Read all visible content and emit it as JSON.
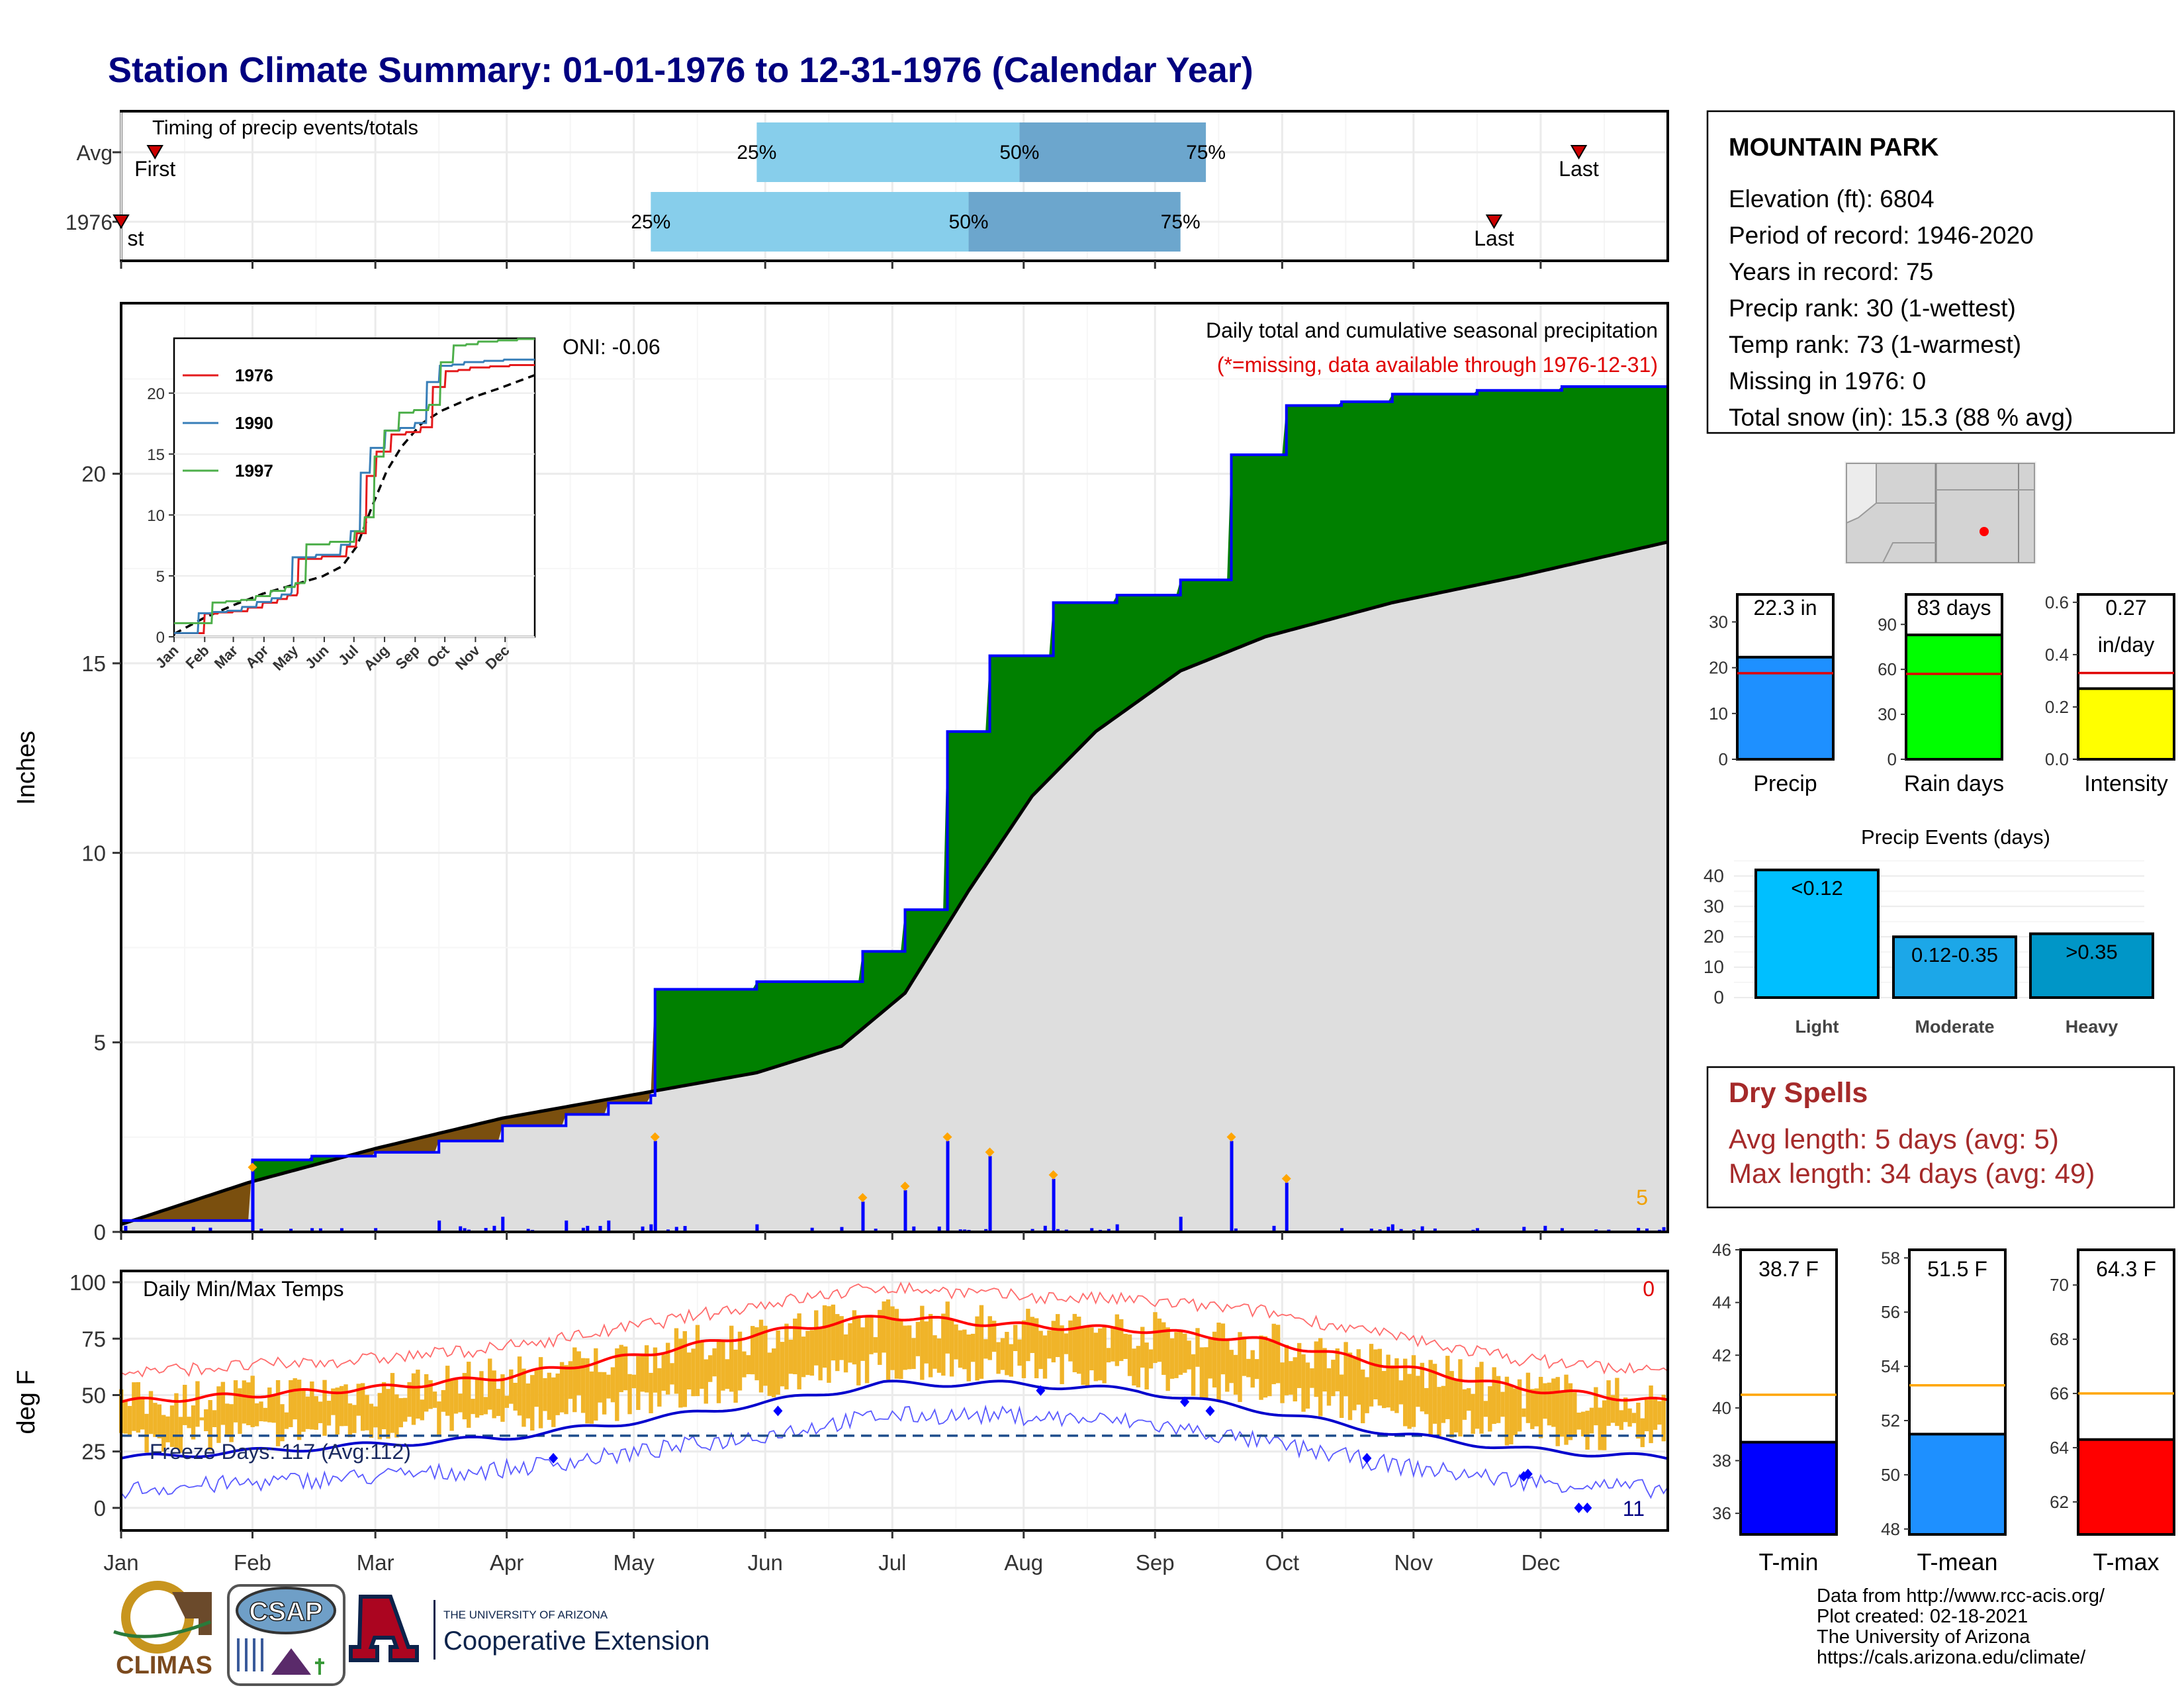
{
  "title": "Station Climate Summary: 01-01-1976 to 12-31-1976 (Calendar Year)",
  "months": [
    "Jan",
    "Feb",
    "Mar",
    "Apr",
    "May",
    "Jun",
    "Jul",
    "Aug",
    "Sep",
    "Oct",
    "Nov",
    "Dec"
  ],
  "timing": {
    "title": "Timing of precip events/totals",
    "rows": [
      {
        "label": "Avg",
        "first_label": "First",
        "last_label": "Last",
        "first_doy": 8,
        "q25_doy": 150,
        "q50_doy": 212,
        "q75_doy": 256,
        "last_doy": 344
      },
      {
        "label": "1976",
        "first_label": "First",
        "last_label": "Last",
        "first_doy": 0,
        "q25_doy": 125,
        "q50_doy": 200,
        "q75_doy": 250,
        "last_doy": 324
      }
    ],
    "q_labels": [
      "25%",
      "50%",
      "75%"
    ]
  },
  "precip_panel": {
    "ylabel": "Inches",
    "oni_label": "ONI: -0.06",
    "legend_title": "Daily total and cumulative seasonal precipitation",
    "legend_note": "(*=missing, data available through 1976-12-31)",
    "count_label": "5",
    "yticks": [
      "0",
      "5",
      "10",
      "15",
      "20"
    ],
    "inset_legend": [
      "1976",
      "1990",
      "1997"
    ],
    "inset_months": [
      "Jan",
      "Feb",
      "Mar",
      "Apr",
      "May",
      "Jun",
      "Jul",
      "Aug",
      "Sep",
      "Oct",
      "Nov",
      "Dec"
    ],
    "inset_yticks": [
      "0",
      "5",
      "10",
      "15",
      "20"
    ]
  },
  "temp_panel": {
    "ylabel": "deg F",
    "title": "Daily Min/Max Temps",
    "freeze_label": "Freeze Days: 117 (Avg:112)",
    "count_top": "0",
    "count_bottom": "11",
    "yticks": [
      "0",
      "25",
      "50",
      "75",
      "100"
    ]
  },
  "station": {
    "name": "MOUNTAIN PARK",
    "lines": [
      "Elevation (ft): 6804",
      "Period of record: 1946-2020",
      "Years in record: 75",
      "Precip rank: 30 (1-wettest)",
      "Temp rank: 73 (1-warmest)",
      "Missing in 1976: 0",
      "Total snow (in): 15.3 (88 % avg)"
    ]
  },
  "mini_bars": [
    {
      "label": "Precip",
      "value_label": "22.3 in",
      "value": 22.3,
      "avg": 18.8,
      "ymax": 36,
      "ticks": [
        "0",
        "10",
        "20",
        "30"
      ],
      "color": "#1e90ff"
    },
    {
      "label": "Rain days",
      "value_label": "83 days",
      "value": 83,
      "avg": 57,
      "ymax": 110,
      "ticks": [
        "0",
        "30",
        "60",
        "90"
      ],
      "color": "#00ff00"
    },
    {
      "label": "Intensity",
      "value_label": "0.27",
      "value_label2": "in/day",
      "value": 0.27,
      "avg": 0.33,
      "ymax": 0.63,
      "ticks": [
        "0.0",
        "0.2",
        "0.4",
        "0.6"
      ],
      "color": "#ffff00"
    }
  ],
  "events": {
    "title": "Precip Events (days)",
    "categories": [
      "Light",
      "Moderate",
      "Heavy"
    ],
    "bar_labels": [
      "<0.12",
      "0.12-0.35",
      ">0.35"
    ],
    "values": [
      42,
      20,
      21
    ],
    "colors": [
      "#00bfff",
      "#1ca7e8",
      "#0096c7"
    ],
    "yticks": [
      "0",
      "10",
      "20",
      "30",
      "40"
    ]
  },
  "dry_spells": {
    "title": "Dry Spells",
    "avg_line": "Avg length: 5 days (avg: 5)",
    "max_line": "Max length: 34 days (avg: 49)"
  },
  "temp_bars": [
    {
      "label": "T-min",
      "value_label": "38.7 F",
      "value": 38.7,
      "avg": 40.5,
      "ymin": 35.2,
      "ymax": 46,
      "ticks": [
        "36",
        "38",
        "40",
        "42",
        "44",
        "46"
      ],
      "color": "#0000ff"
    },
    {
      "label": "T-mean",
      "value_label": "51.5 F",
      "value": 51.5,
      "avg": 53.3,
      "ymin": 47.8,
      "ymax": 58.3,
      "ticks": [
        "48",
        "50",
        "52",
        "54",
        "56",
        "58"
      ],
      "color": "#1e90ff"
    },
    {
      "label": "T-max",
      "value_label": "64.3 F",
      "value": 64.3,
      "avg": 66,
      "ymin": 60.8,
      "ymax": 71.3,
      "ticks": [
        "62",
        "64",
        "66",
        "68",
        "70"
      ],
      "color": "#ff0000"
    }
  ],
  "footer": {
    "lines": [
      "Data from http://www.rcc-acis.org/",
      "Plot created: 02-18-2021",
      "The University of Arizona",
      "https://cals.arizona.edu/climate/"
    ],
    "logo_climas": "CLIMAS",
    "logo_csap": "CSAP",
    "logo_ua_top": "THE UNIVERSITY OF ARIZONA",
    "logo_ua_bottom": "Cooperative Extension"
  },
  "chart_data": [
    {
      "type": "line",
      "title": "Daily total and cumulative seasonal precipitation",
      "ylabel": "Inches",
      "ylim": [
        0,
        24.5
      ],
      "x_units": "day of year",
      "series": [
        {
          "name": "1976",
          "x": [
            0,
            5,
            31,
            45,
            60,
            75,
            90,
            105,
            115,
            125,
            126,
            150,
            175,
            185,
            195,
            205,
            220,
            235,
            250,
            262,
            275,
            288,
            300,
            320,
            340,
            365
          ],
          "values": [
            0.3,
            0.3,
            1.9,
            2.0,
            2.1,
            2.4,
            2.8,
            3.1,
            3.4,
            3.6,
            6.4,
            6.6,
            7.4,
            8.5,
            13.2,
            15.2,
            16.6,
            16.8,
            17.2,
            20.5,
            21.8,
            21.9,
            22.1,
            22.2,
            22.3,
            22.3
          ]
        },
        {
          "name": "Avg",
          "x": [
            0,
            30,
            60,
            90,
            120,
            150,
            170,
            185,
            200,
            215,
            230,
            250,
            270,
            300,
            330,
            365
          ],
          "values": [
            0.2,
            1.3,
            2.2,
            3.0,
            3.6,
            4.2,
            4.9,
            6.3,
            9.0,
            11.5,
            13.2,
            14.8,
            15.7,
            16.6,
            17.3,
            18.2
          ]
        }
      ]
    },
    {
      "type": "line",
      "title": "Daily Min/Max Temps",
      "ylabel": "deg F",
      "ylim": [
        -10,
        105
      ],
      "x_units": "day of year",
      "series": [
        {
          "name": "Avg max",
          "x": [
            0,
            30,
            60,
            90,
            120,
            150,
            180,
            210,
            240,
            270,
            300,
            330,
            365
          ],
          "values": [
            47,
            50,
            53,
            58,
            67,
            77,
            85,
            81,
            79,
            74,
            63,
            53,
            47
          ]
        },
        {
          "name": "Avg min",
          "x": [
            0,
            30,
            60,
            90,
            120,
            150,
            180,
            210,
            240,
            270,
            300,
            330,
            365
          ],
          "values": [
            22,
            25,
            28,
            31,
            38,
            46,
            55,
            55,
            52,
            43,
            33,
            26,
            22
          ]
        },
        {
          "name": "Freeze line",
          "x": [
            0,
            365
          ],
          "values": [
            32,
            32
          ]
        }
      ]
    }
  ]
}
